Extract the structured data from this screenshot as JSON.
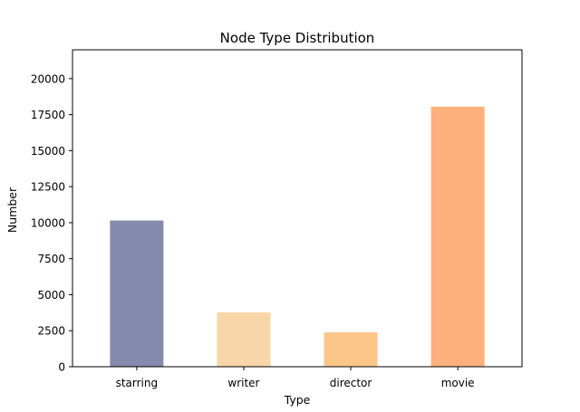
{
  "chart_data": {
    "type": "bar",
    "title": "Node Type Distribution",
    "xlabel": "Type",
    "ylabel": "Number",
    "categories": [
      "starring",
      "writer",
      "director",
      "movie"
    ],
    "values": [
      10150,
      3770,
      2390,
      18050
    ],
    "ylim": [
      0,
      22000
    ],
    "yticks": [
      0,
      2500,
      5000,
      7500,
      10000,
      12500,
      15000,
      17500,
      20000
    ],
    "ytick_labels": [
      "0",
      "2500",
      "5000",
      "7500",
      "10000",
      "12500",
      "15000",
      "17500",
      "20000"
    ],
    "grid": false,
    "legend": "none",
    "colors": [
      "#858BAD",
      "#F8D6A8",
      "#FCC689",
      "#FDB07B"
    ]
  }
}
